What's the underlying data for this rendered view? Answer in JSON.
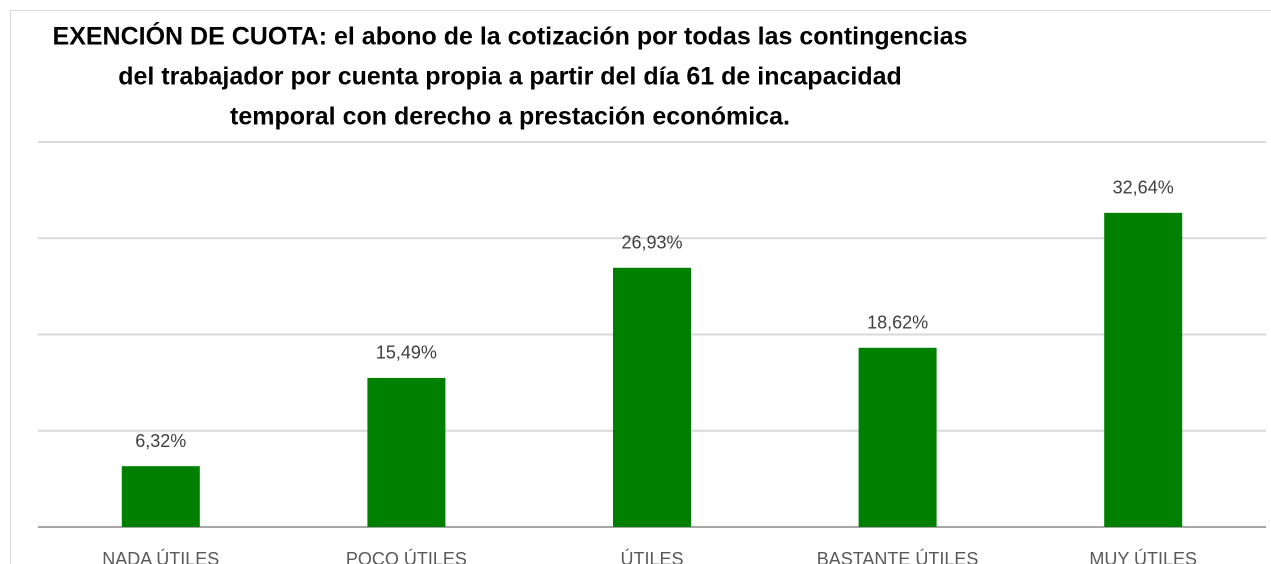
{
  "chart_data": {
    "type": "bar",
    "title": [
      "EXENCIÓN DE CUOTA: el abono de la cotización por todas las contingencias",
      "del trabajador por cuenta propia a partir del día 61 de incapacidad",
      "temporal con derecho a prestación económica."
    ],
    "categories": [
      "NADA ÚTILES",
      "POCO ÚTILES",
      "ÚTILES",
      "BASTANTE  ÚTILES",
      "MUY ÚTILES"
    ],
    "values": [
      6.32,
      15.49,
      26.93,
      18.62,
      32.64
    ],
    "value_labels": [
      "6,32%",
      "15,49%",
      "26,93%",
      "18,62%",
      "32,64%"
    ],
    "color": "#008000",
    "ylim": [
      0,
      40
    ],
    "yticks": [
      0,
      10,
      20,
      30,
      40
    ],
    "grid": true
  }
}
